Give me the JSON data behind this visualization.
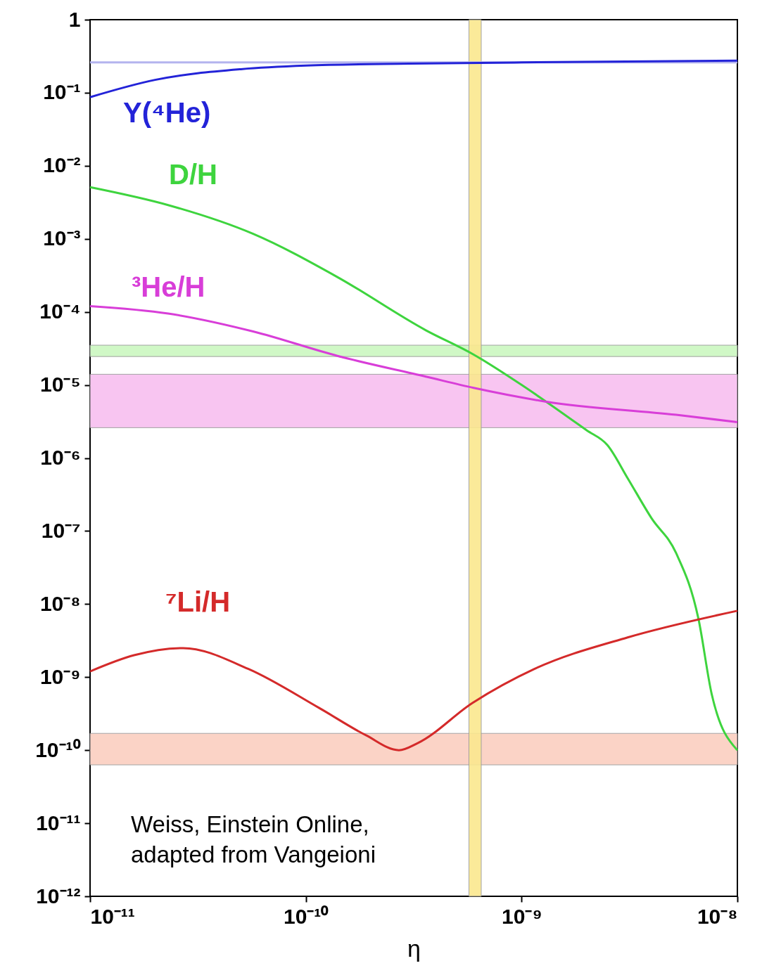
{
  "chart_data": {
    "type": "line",
    "xlabel": "η",
    "log": "xy",
    "xlim": [
      1e-11,
      1e-08
    ],
    "ylim": [
      1e-12,
      1
    ],
    "xticks": [
      {
        "value": 1e-11,
        "label": "10⁻¹¹"
      },
      {
        "value": 1e-10,
        "label": "10⁻¹⁰"
      },
      {
        "value": 1e-09,
        "label": "10⁻⁹"
      },
      {
        "value": 1e-08,
        "label": "10⁻⁸"
      }
    ],
    "yticks": [
      {
        "value": 1e-12,
        "label": "10⁻¹²"
      },
      {
        "value": 1e-11,
        "label": "10⁻¹¹"
      },
      {
        "value": 1e-10,
        "label": "10⁻¹⁰"
      },
      {
        "value": 1e-09,
        "label": "10⁻⁹"
      },
      {
        "value": 1e-08,
        "label": "10⁻⁸"
      },
      {
        "value": 1e-07,
        "label": "10⁻⁷"
      },
      {
        "value": 1e-06,
        "label": "10⁻⁶"
      },
      {
        "value": 1e-05,
        "label": "10⁻⁵"
      },
      {
        "value": 0.0001,
        "label": "10⁻⁴"
      },
      {
        "value": 0.001,
        "label": "10⁻³"
      },
      {
        "value": 0.01,
        "label": "10⁻²"
      },
      {
        "value": 0.1,
        "label": "10⁻¹"
      },
      1
    ],
    "series": [
      {
        "name": "Y(⁴He)",
        "color": "#2323d8",
        "x": [
          1e-11,
          2e-11,
          5e-11,
          1e-10,
          3e-10,
          1e-09,
          1e-08
        ],
        "values": [
          0.087,
          0.15,
          0.21,
          0.235,
          0.25,
          0.26,
          0.275
        ]
      },
      {
        "name": "D/H",
        "color": "#3ed43e",
        "x": [
          1e-11,
          2.3e-11,
          5.7e-11,
          1.4e-10,
          3.6e-10,
          6e-10,
          1e-09,
          1.3e-09,
          2e-09,
          2.5e-09,
          3.1e-09,
          4e-09,
          5.2e-09,
          6.6e-09,
          7.6e-09,
          1e-08
        ],
        "values": [
          0.0051,
          0.0029,
          0.00117,
          0.0003,
          5.6e-05,
          2.6e-05,
          1e-05,
          5.9e-06,
          2.4e-06,
          1.5e-06,
          5.3e-07,
          1.5e-07,
          5e-08,
          6.3e-09,
          5.9e-10,
          1e-10
        ]
      },
      {
        "name": "³He/H",
        "color": "#d83ed8",
        "x": [
          1e-11,
          2.3e-11,
          5.7e-11,
          1.4e-10,
          3.6e-10,
          6e-10,
          1.3e-09,
          5.2e-09,
          1e-08
        ],
        "values": [
          0.00012,
          9.5e-05,
          5.4e-05,
          2.5e-05,
          1.3e-05,
          9.1e-06,
          5.9e-06,
          3.9e-06,
          3.1e-06
        ]
      },
      {
        "name": "⁷Li/H",
        "color": "#d42a2a",
        "x": [
          1e-11,
          1.6e-11,
          2.7e-11,
          5.4e-11,
          1.15e-10,
          1.9e-10,
          2.7e-10,
          3.3e-10,
          5.9e-10,
          1.15e-09,
          3.1e-09,
          1e-08
        ],
        "values": [
          1.2e-09,
          2e-09,
          2.5e-09,
          1.3e-09,
          3.8e-10,
          1.6e-10,
          1e-10,
          1.25e-10,
          4.4e-10,
          1.3e-09,
          3.5e-09,
          8.1e-09
        ]
      }
    ],
    "ref_lines": [
      {
        "axis": "y",
        "value": 0.26,
        "color": "#b4b4ee"
      }
    ],
    "bands": [
      {
        "axis": "y",
        "from": 2.45e-05,
        "to": 3.5e-05,
        "color": "#ccf8c0"
      },
      {
        "axis": "y",
        "from": 2.6e-06,
        "to": 1.4e-05,
        "color": "#f8bff0"
      },
      {
        "axis": "y",
        "from": 6.3e-11,
        "to": 1.7e-10,
        "color": "#fbcfc0"
      },
      {
        "axis": "x",
        "from": 5.7e-10,
        "to": 6.5e-10,
        "color": "#fbe88f"
      }
    ],
    "annotations": [
      "Weiss, Einstein Online,\nadapted from Vangeioni"
    ]
  }
}
